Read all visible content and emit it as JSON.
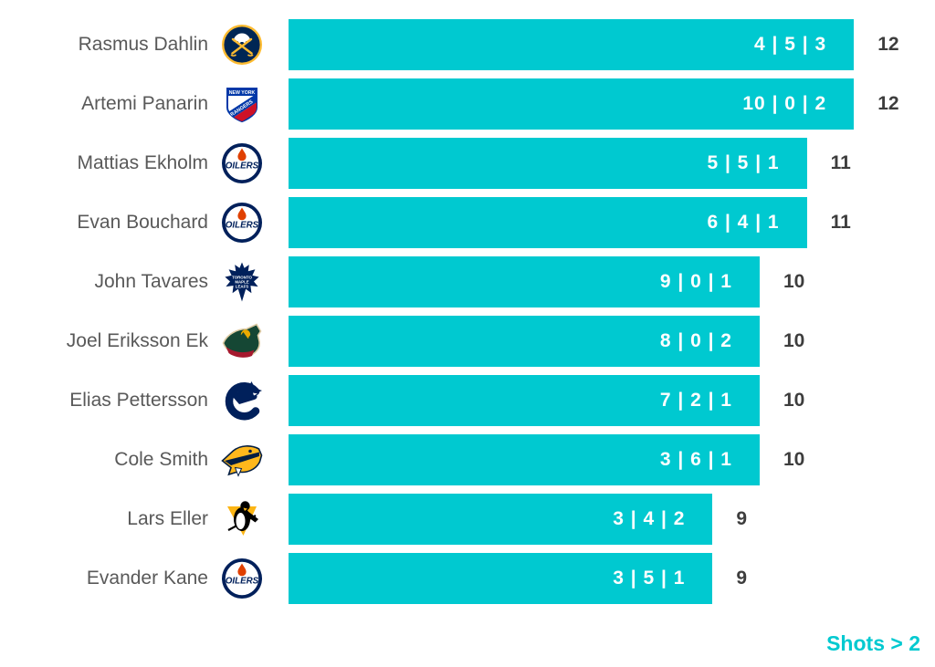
{
  "chart_data": {
    "type": "bar",
    "orientation": "horizontal",
    "footer_label": "Shots > 2",
    "bar_color": "#00c9d0",
    "bar_label_color": "#ffffff",
    "total_label_color": "#3d3d3d",
    "footer_color": "#00c9d0",
    "xlim": [
      0,
      12
    ],
    "grid": false,
    "legend": false,
    "categories": [
      "Rasmus Dahlin",
      "Artemi Panarin",
      "Mattias Ekholm",
      "Evan Bouchard",
      "John Tavares",
      "Joel Eriksson Ek",
      "Elias Pettersson",
      "Cole Smith",
      "Lars Eller",
      "Evander Kane"
    ],
    "rows": [
      {
        "player": "Rasmus Dahlin",
        "team_logo": "buffalo-sabres",
        "segments": [
          4,
          5,
          3
        ],
        "segment_label": "4 | 5 | 3",
        "total": 12
      },
      {
        "player": "Artemi Panarin",
        "team_logo": "new-york-rangers",
        "segments": [
          10,
          0,
          2
        ],
        "segment_label": "10 | 0 | 2",
        "total": 12
      },
      {
        "player": "Mattias Ekholm",
        "team_logo": "edmonton-oilers",
        "segments": [
          5,
          5,
          1
        ],
        "segment_label": "5 | 5 | 1",
        "total": 11
      },
      {
        "player": "Evan Bouchard",
        "team_logo": "edmonton-oilers",
        "segments": [
          6,
          4,
          1
        ],
        "segment_label": "6 | 4 | 1",
        "total": 11
      },
      {
        "player": "John Tavares",
        "team_logo": "toronto-maple-leafs",
        "segments": [
          9,
          0,
          1
        ],
        "segment_label": "9 | 0 | 1",
        "total": 10
      },
      {
        "player": "Joel Eriksson Ek",
        "team_logo": "minnesota-wild",
        "segments": [
          8,
          0,
          2
        ],
        "segment_label": "8 | 0 | 2",
        "total": 10
      },
      {
        "player": "Elias Pettersson",
        "team_logo": "vancouver-canucks",
        "segments": [
          7,
          2,
          1
        ],
        "segment_label": "7 | 2 | 1",
        "total": 10
      },
      {
        "player": "Cole Smith",
        "team_logo": "nashville-predators",
        "segments": [
          3,
          6,
          1
        ],
        "segment_label": "3 | 6 | 1",
        "total": 10
      },
      {
        "player": "Lars Eller",
        "team_logo": "pittsburgh-penguins",
        "segments": [
          3,
          4,
          2
        ],
        "segment_label": "3 | 4 | 2",
        "total": 9
      },
      {
        "player": "Evander Kane",
        "team_logo": "edmonton-oilers",
        "segments": [
          3,
          5,
          1
        ],
        "segment_label": "3 | 5 | 1",
        "total": 9
      }
    ]
  }
}
